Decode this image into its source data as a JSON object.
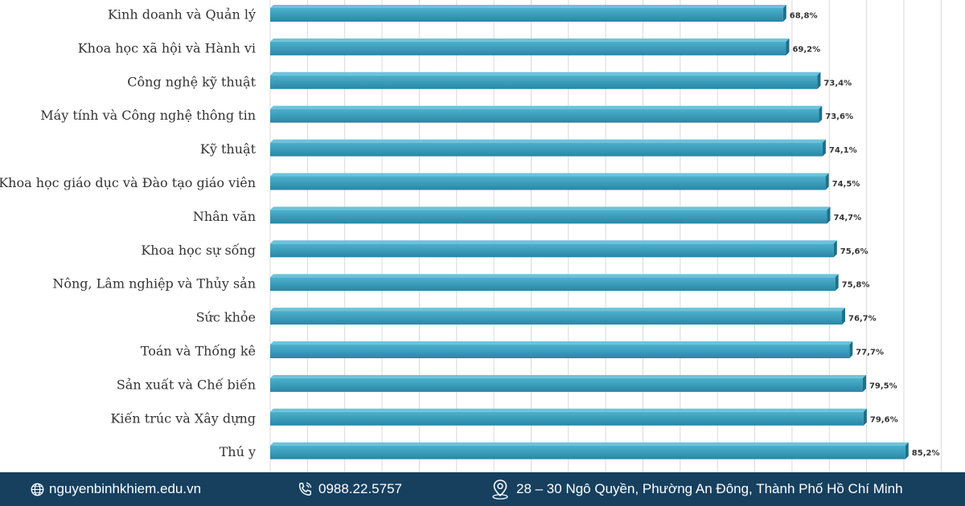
{
  "chart_data": {
    "type": "bar",
    "orientation": "horizontal",
    "categories": [
      "Kinh doanh và Quản lý",
      "Khoa học xã hội và Hành vi",
      "Công nghệ kỹ thuật",
      "Máy tính và Công nghệ thông tin",
      "Kỹ thuật",
      "Khoa học giáo dục và Đào tạo giáo viên",
      "Nhân văn",
      "Khoa học sự sống",
      "Nông, Lâm nghiệp và Thủy sản",
      "Sức khỏe",
      "Toán và Thống kê",
      "Sản xuất và Chế biến",
      "Kiến trúc và Xây dựng",
      "Thú y"
    ],
    "values": [
      68.8,
      69.2,
      73.4,
      73.6,
      74.1,
      74.5,
      74.7,
      75.6,
      75.8,
      76.7,
      77.7,
      79.5,
      79.6,
      85.2
    ],
    "value_labels": [
      "68,8%",
      "69,2%",
      "73,4%",
      "73,6%",
      "74,1%",
      "74,5%",
      "74,7%",
      "75,6%",
      "75,8%",
      "76,7%",
      "77,7%",
      "79,5%",
      "79,6%",
      "85,2%"
    ],
    "xlim": [
      0,
      90
    ],
    "grid": true,
    "colors": {
      "bar_top": "#4cb2cd",
      "bar_bottom": "#2a86a5",
      "bar_side": "#1f6f88",
      "grid": "#d9d9d9"
    }
  },
  "footer": {
    "website": "nguyenbinhkhiem.edu.vn",
    "phone": "0988.22.5757",
    "address": "28 – 30 Ngô Quyền, Phường An Đông, Thành Phố Hồ Chí Minh",
    "website_icon": "globe-icon",
    "phone_icon": "phone-icon",
    "address_icon": "map-pin-icon",
    "background": "#17405f"
  }
}
